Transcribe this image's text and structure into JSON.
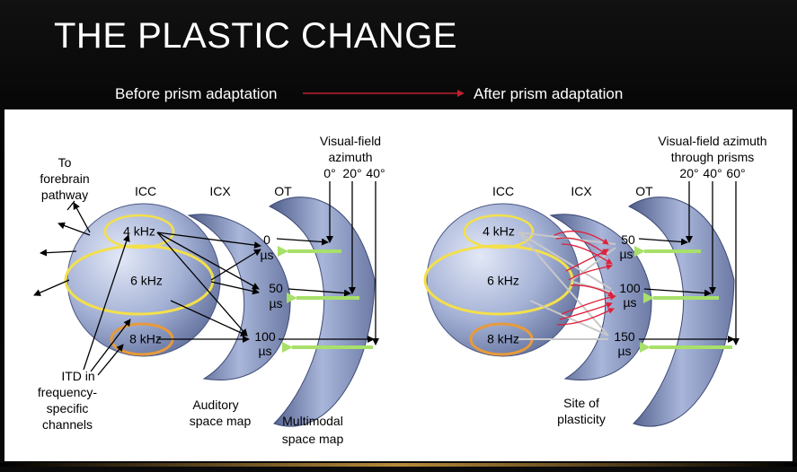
{
  "title": "THE PLASTIC CHANGE",
  "header": {
    "before": "Before prism adaptation",
    "after": "After prism adaptation"
  },
  "left": {
    "to_forebrain": [
      "To",
      "forebrain",
      "pathway"
    ],
    "icc": "ICC",
    "icx": "ICX",
    "ot": "OT",
    "visual_field": [
      "Visual-field",
      "azimuth"
    ],
    "degrees": [
      "0°",
      "20°",
      "40°"
    ],
    "freq": [
      "4 kHz",
      "6 kHz",
      "8 kHz"
    ],
    "itd_values": [
      "0",
      "50",
      "100"
    ],
    "us": "µs",
    "itd_label": [
      "ITD in",
      "frequency-",
      "specific",
      "channels"
    ],
    "auditory": [
      "Auditory",
      "space map"
    ],
    "multimodal": [
      "Multimodal",
      "space map"
    ]
  },
  "right": {
    "icc": "ICC",
    "icx": "ICX",
    "ot": "OT",
    "visual_field": [
      "Visual-field azimuth",
      "through prisms"
    ],
    "degrees": [
      "20°",
      "40°",
      "60°"
    ],
    "freq": [
      "4 kHz",
      "6 kHz",
      "8 kHz"
    ],
    "itd_values": [
      "50",
      "100",
      "150"
    ],
    "us": "µs",
    "site": [
      "Site of",
      "plasticity"
    ]
  },
  "colors": {
    "sphere": "#8e9cc4",
    "yellow": "#f4e04a",
    "orange": "#e89a3a",
    "green": "#a8e06a",
    "red": "#e0203a"
  }
}
